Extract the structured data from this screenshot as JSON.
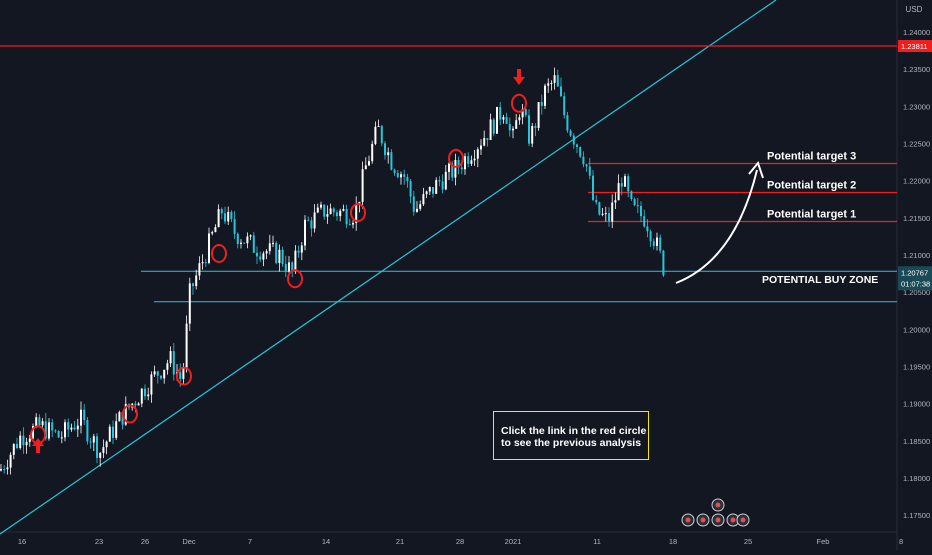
{
  "chart_data": {
    "type": "candlestick",
    "currency": "USD",
    "ylim": [
      1.1705,
      1.252
    ],
    "y_ticks": [
      "1.24000",
      "1.23500",
      "1.23000",
      "1.22500",
      "1.22000",
      "1.21500",
      "1.21000",
      "1.20500",
      "1.20000",
      "1.19500",
      "1.19000",
      "1.18500",
      "1.18000",
      "1.17500"
    ],
    "x_ticks": [
      "16",
      "23",
      "26",
      "Dec",
      "7",
      "14",
      "21",
      "28",
      "2021",
      "11",
      "18",
      "25",
      "Feb"
    ],
    "price_label_resistance": "1.23811",
    "price_label_current": "1.20767",
    "countdown_label": "01:07:38",
    "resistance_level": 1.23811,
    "current_price": 1.20767,
    "target_levels": [
      {
        "label": "Potential target 3",
        "price": 1.2223
      },
      {
        "label": "Potential target 2",
        "price": 1.2184
      },
      {
        "label": "Potential target 1",
        "price": 1.2145
      }
    ],
    "buy_zone": {
      "label": "POTENTIAL BUY ZONE",
      "upper": 1.2078,
      "lower": 1.2037
    },
    "note": [
      "Click the link in the red circle",
      "to see the previous analysis"
    ],
    "colors": {
      "background": "#131722",
      "up_candle": "#ffffff",
      "down_candle": "#26c6da",
      "resistance": "#f21d1d",
      "target": "#f21d1d",
      "zone": "#26c6da",
      "trendline": "#26c6da",
      "marker": "#f21d1d",
      "note_border": "#f5e900"
    }
  }
}
